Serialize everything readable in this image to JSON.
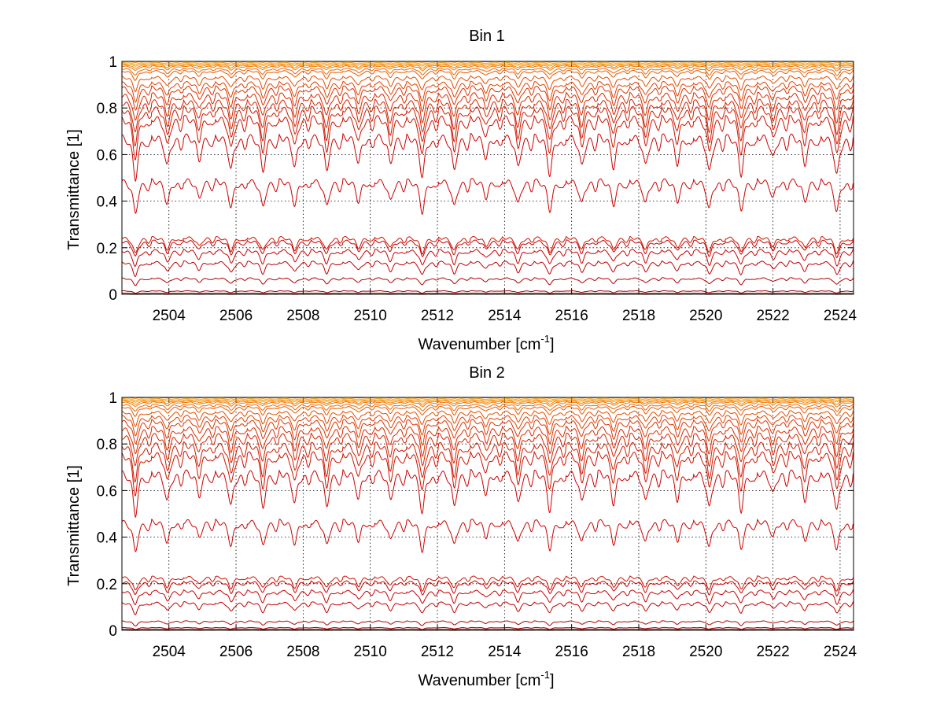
{
  "chart_data": [
    {
      "type": "line",
      "title": "Bin 1",
      "xlabel_main": "Wavenumber [cm",
      "xlabel_sup": "-1",
      "xlabel_end": "]",
      "ylabel": "Transmittance [1]",
      "xlim": [
        2502.6,
        2524.4
      ],
      "ylim": [
        0,
        1
      ],
      "xticks": [
        "2504",
        "2506",
        "2508",
        "2510",
        "2512",
        "2514",
        "2516",
        "2518",
        "2520",
        "2522",
        "2524"
      ],
      "yticks": [
        "0",
        "0.2",
        "0.4",
        "0.6",
        "0.8",
        "1"
      ],
      "grid": true,
      "grid_style": "dotted",
      "line_spacing_cm1": 0.95,
      "line_origin_cm1": 2503.0,
      "series_baselines": [
        0.005,
        0.015,
        0.07,
        0.14,
        0.19,
        0.23,
        0.245,
        0.49,
        0.68,
        0.76,
        0.8,
        0.83,
        0.86,
        0.89,
        0.91,
        0.935,
        0.96,
        0.97,
        0.98,
        0.985,
        0.99,
        0.995,
        1.0
      ],
      "series_depths": [
        0.003,
        0.01,
        0.03,
        0.06,
        0.07,
        0.07,
        0.07,
        0.14,
        0.18,
        0.17,
        0.16,
        0.14,
        0.12,
        0.1,
        0.08,
        0.06,
        0.04,
        0.03,
        0.02,
        0.015,
        0.01,
        0.008,
        0.005
      ],
      "series_colors": [
        "#800000",
        "#9a0000",
        "#b00000",
        "#c00000",
        "#c80000",
        "#c80000",
        "#cc1100",
        "#cc0000",
        "#cc0000",
        "#cc1100",
        "#d01a00",
        "#d42200",
        "#d82a00",
        "#dc3300",
        "#e04000",
        "#e44d00",
        "#e85a00",
        "#ec6600",
        "#f07400",
        "#f48200",
        "#f89000",
        "#e8a020",
        "#ff8c00"
      ]
    },
    {
      "type": "line",
      "title": "Bin 2",
      "xlabel_main": "Wavenumber [cm",
      "xlabel_sup": "-1",
      "xlabel_end": "]",
      "ylabel": "Transmittance [1]",
      "xlim": [
        2502.6,
        2524.4
      ],
      "ylim": [
        0,
        1
      ],
      "xticks": [
        "2504",
        "2506",
        "2508",
        "2510",
        "2512",
        "2514",
        "2516",
        "2518",
        "2520",
        "2522",
        "2524"
      ],
      "yticks": [
        "0",
        "0.2",
        "0.4",
        "0.6",
        "0.8",
        "1"
      ],
      "grid": true,
      "grid_style": "dotted",
      "line_spacing_cm1": 0.95,
      "line_origin_cm1": 2503.0,
      "series_baselines": [
        0.005,
        0.012,
        0.04,
        0.12,
        0.17,
        0.21,
        0.23,
        0.47,
        0.68,
        0.76,
        0.8,
        0.84,
        0.87,
        0.9,
        0.92,
        0.94,
        0.96,
        0.97,
        0.98,
        0.985,
        0.99,
        0.995,
        1.0
      ],
      "series_depths": [
        0.003,
        0.008,
        0.02,
        0.05,
        0.06,
        0.06,
        0.06,
        0.13,
        0.18,
        0.17,
        0.16,
        0.14,
        0.12,
        0.1,
        0.08,
        0.06,
        0.04,
        0.03,
        0.02,
        0.015,
        0.01,
        0.008,
        0.005
      ],
      "series_colors": [
        "#800000",
        "#9a0000",
        "#b00000",
        "#c00000",
        "#c80000",
        "#c80000",
        "#cc1100",
        "#cc0000",
        "#cc0000",
        "#cc1100",
        "#d01a00",
        "#d42200",
        "#d82a00",
        "#dc3300",
        "#e04000",
        "#e44d00",
        "#e85a00",
        "#ec6600",
        "#f07400",
        "#f48200",
        "#f89000",
        "#e8a020",
        "#ff8c00"
      ]
    }
  ]
}
